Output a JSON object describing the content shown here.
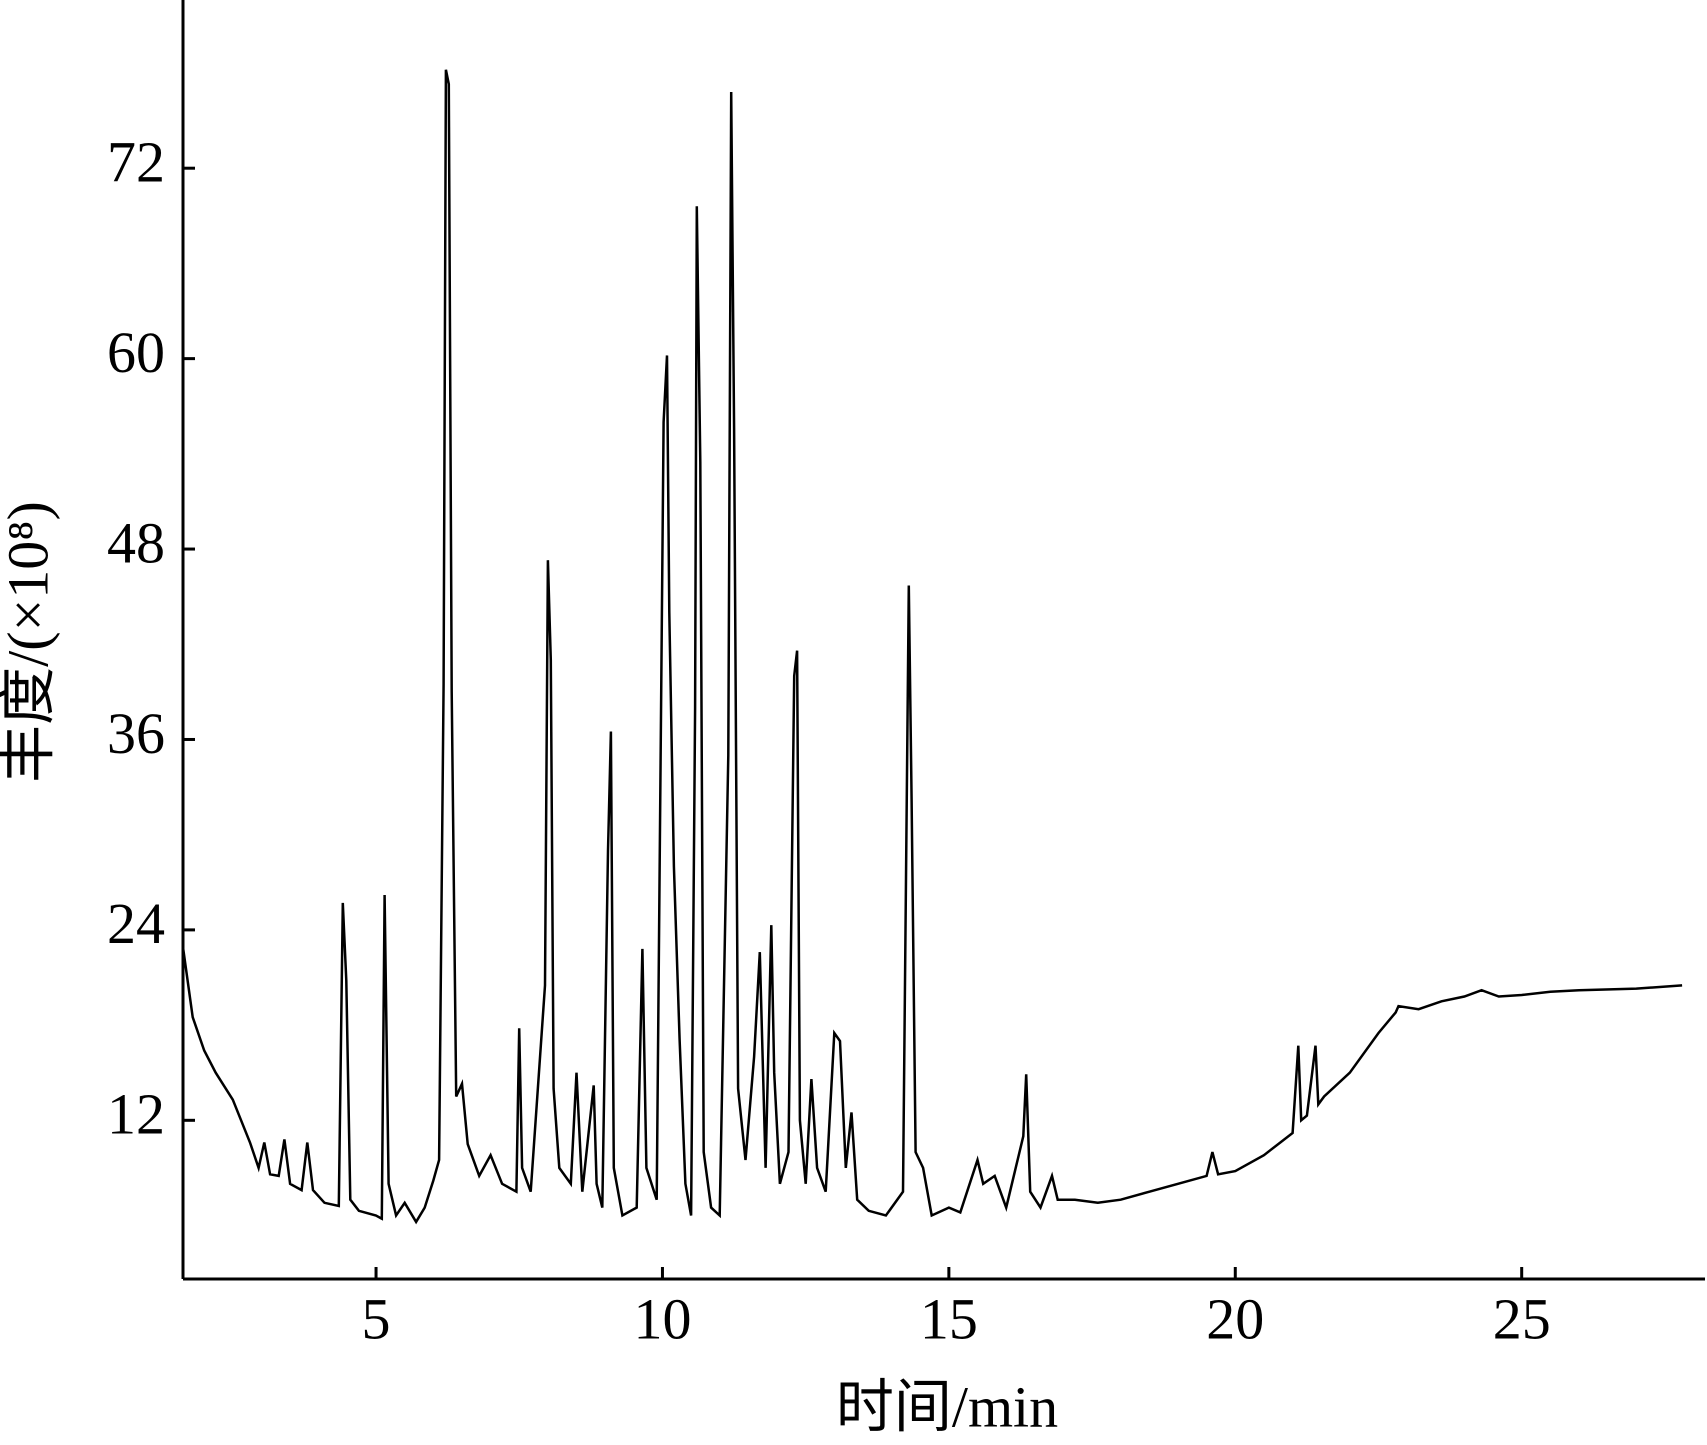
{
  "chart_data": {
    "type": "line",
    "x_label": "时间/min",
    "y_label": "丰度/(×10⁸)",
    "xlim": [
      1.63,
      28.2
    ],
    "ylim": [
      2,
      82.6
    ],
    "xticks": [
      5,
      10,
      15,
      20,
      25
    ],
    "yticks": [
      12,
      24,
      36,
      48,
      60,
      72
    ],
    "grid": false,
    "series": [
      {
        "color": "#000000",
        "x": [
          1.63,
          1.8,
          2.0,
          2.2,
          2.5,
          2.8,
          2.95,
          3.05,
          3.15,
          3.3,
          3.4,
          3.5,
          3.7,
          3.8,
          3.9,
          4.1,
          4.35,
          4.42,
          4.48,
          4.55,
          4.7,
          5.0,
          5.1,
          5.15,
          5.22,
          5.35,
          5.5,
          5.7,
          5.85,
          6.0,
          6.1,
          6.18,
          6.22,
          6.27,
          6.32,
          6.4,
          6.5,
          6.6,
          6.8,
          7.0,
          7.2,
          7.45,
          7.5,
          7.55,
          7.7,
          7.95,
          8.0,
          8.05,
          8.1,
          8.2,
          8.4,
          8.5,
          8.6,
          8.8,
          8.85,
          8.95,
          9.05,
          9.1,
          9.15,
          9.3,
          9.55,
          9.65,
          9.72,
          9.9,
          10.02,
          10.08,
          10.12,
          10.2,
          10.3,
          10.4,
          10.5,
          10.57,
          10.6,
          10.66,
          10.72,
          10.85,
          11.0,
          11.15,
          11.2,
          11.25,
          11.32,
          11.45,
          11.6,
          11.7,
          11.8,
          11.9,
          11.95,
          12.05,
          12.2,
          12.3,
          12.35,
          12.4,
          12.5,
          12.6,
          12.7,
          12.85,
          13.0,
          13.1,
          13.2,
          13.3,
          13.4,
          13.6,
          13.9,
          14.2,
          14.3,
          14.35,
          14.42,
          14.55,
          14.7,
          15.0,
          15.2,
          15.5,
          15.6,
          15.8,
          16.0,
          16.3,
          16.35,
          16.42,
          16.6,
          16.8,
          16.9,
          17.2,
          17.6,
          18.0,
          18.5,
          19.0,
          19.5,
          19.6,
          19.7,
          20.0,
          20.5,
          21.0,
          21.1,
          21.15,
          21.25,
          21.4,
          21.45,
          21.55,
          22.0,
          22.5,
          22.8,
          22.85,
          23.2,
          23.6,
          24.0,
          24.3,
          24.6,
          25.0,
          25.5,
          26.0,
          27.0,
          27.8
        ],
        "values": [
          22.9,
          18.5,
          16.4,
          15.0,
          13.3,
          10.6,
          9.0,
          10.6,
          8.6,
          8.5,
          10.8,
          8.0,
          7.6,
          10.6,
          7.6,
          6.8,
          6.6,
          25.7,
          20.8,
          7.0,
          6.3,
          6.0,
          5.8,
          26.2,
          8.0,
          6.0,
          6.8,
          5.6,
          6.5,
          8.2,
          9.5,
          39.5,
          78.2,
          77.3,
          39.0,
          13.5,
          14.3,
          10.5,
          8.5,
          9.8,
          8.0,
          7.5,
          17.8,
          9.0,
          7.5,
          20.5,
          47.3,
          41.0,
          14.0,
          9.0,
          8.0,
          15.0,
          7.5,
          14.2,
          8.0,
          6.5,
          29.0,
          36.5,
          9.0,
          6.0,
          6.5,
          22.8,
          9.0,
          7.0,
          56.0,
          60.2,
          44.0,
          28.0,
          17.1,
          8.0,
          6.0,
          38.0,
          69.6,
          53.5,
          10.0,
          6.5,
          6.0,
          35.0,
          76.8,
          55.5,
          14.0,
          9.5,
          16.0,
          22.6,
          9.0,
          24.3,
          15.0,
          8.0,
          10.0,
          40.0,
          41.6,
          12.0,
          8.0,
          14.6,
          9.0,
          7.5,
          17.5,
          17.0,
          9.0,
          12.5,
          7.0,
          6.3,
          6.0,
          7.5,
          45.7,
          32.2,
          10.0,
          9.0,
          6.0,
          6.5,
          6.2,
          9.5,
          8.0,
          8.5,
          6.5,
          11.0,
          14.9,
          7.5,
          6.5,
          8.5,
          7.0,
          7.0,
          6.8,
          7.0,
          7.5,
          8.0,
          8.5,
          10.0,
          8.6,
          8.8,
          9.8,
          11.2,
          16.7,
          12.0,
          12.3,
          16.7,
          13.0,
          13.5,
          15.0,
          17.5,
          18.8,
          19.2,
          19.0,
          19.5,
          19.8,
          20.2,
          19.8,
          19.9,
          20.1,
          20.2,
          20.3,
          20.5
        ]
      }
    ]
  }
}
